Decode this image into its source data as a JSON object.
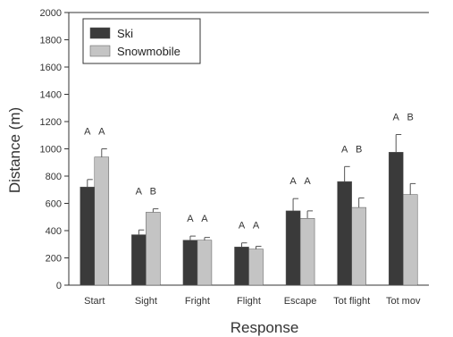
{
  "chart_data": {
    "type": "bar",
    "xlabel": "Response",
    "ylabel": "Distance (m)",
    "ylim": [
      0,
      2000
    ],
    "yticks": [
      0,
      200,
      400,
      600,
      800,
      1000,
      1200,
      1400,
      1600,
      1800,
      2000
    ],
    "grid": false,
    "legend_position": "top-left",
    "categories": [
      "Start",
      "Sight",
      "Fright",
      "Flight",
      "Escape",
      "Tot flight",
      "Tot mov"
    ],
    "series": [
      {
        "name": "Ski",
        "color": "#3a3a3a",
        "values": [
          720,
          370,
          330,
          280,
          545,
          760,
          975
        ],
        "error": [
          55,
          35,
          30,
          30,
          90,
          110,
          130
        ],
        "letters": [
          "A",
          "A",
          "A",
          "A",
          "A",
          "A",
          "A"
        ]
      },
      {
        "name": "Snowmobile",
        "color": "#c4c4c4",
        "values": [
          940,
          535,
          330,
          265,
          490,
          570,
          665
        ],
        "error": [
          60,
          25,
          20,
          20,
          55,
          70,
          80
        ],
        "letters": [
          "A",
          "B",
          "A",
          "A",
          "A",
          "B",
          "B"
        ]
      }
    ]
  }
}
